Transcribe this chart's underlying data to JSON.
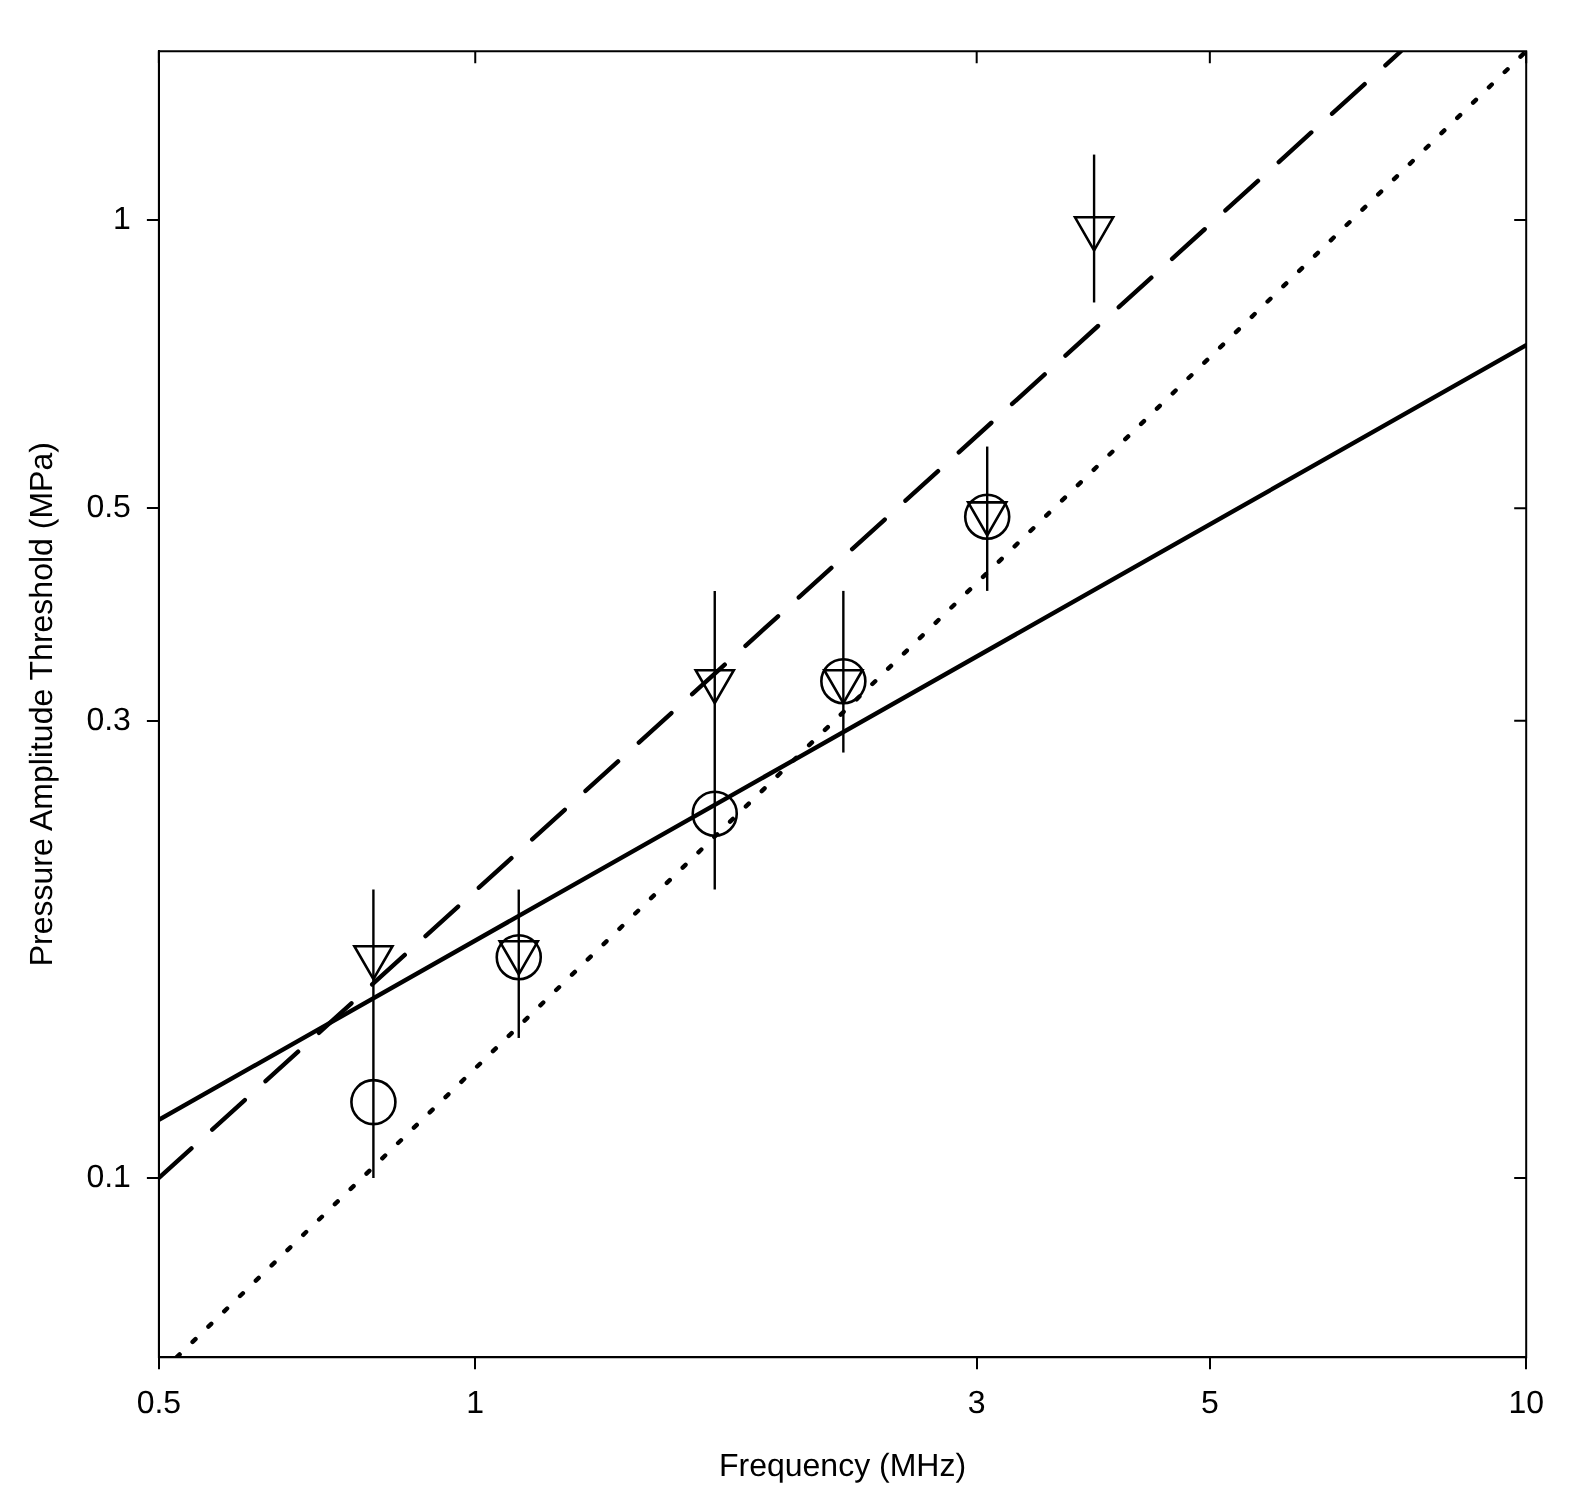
{
  "chart_data": {
    "type": "scatter",
    "xlabel": "Frequency (MHz)",
    "ylabel": "Pressure Amplitude Threshold (MPa)",
    "log": "xy",
    "grid": false,
    "legend": false,
    "xlim": [
      0.5,
      10
    ],
    "xticks": [
      0.5,
      1,
      3,
      5,
      10
    ],
    "ylim": [
      0.065,
      1.5
    ],
    "yticks": [
      0.1,
      0.3,
      0.5,
      1
    ],
    "series": [
      {
        "marker": "triangle",
        "color": "#000000",
        "x": [
          0.8,
          1.1,
          1.69,
          2.24,
          3.07,
          3.88
        ],
        "values": [
          0.17,
          0.172,
          0.33,
          0.33,
          0.494,
          0.98
        ],
        "errors": [
          [
            0.1,
            0.2
          ],
          [
            0.14,
            0.2
          ],
          [
            0.2,
            0.41
          ],
          [
            0.278,
            0.41
          ],
          [
            0.41,
            0.58
          ],
          [
            0.82,
            1.17
          ]
        ]
      },
      {
        "marker": "circle",
        "color": "#000000",
        "x": [
          0.8,
          1.1,
          1.69,
          2.24,
          3.07
        ],
        "values": [
          0.12,
          0.17,
          0.24,
          0.33,
          0.49
        ]
      },
      {
        "type": "line",
        "line_style": "solid",
        "marker": "none",
        "color": "#000000",
        "x": [
          0.5,
          10
        ],
        "values": [
          0.115,
          0.74
        ]
      },
      {
        "type": "line",
        "line_style": "dashed",
        "marker": "none",
        "color": "#000000",
        "x": [
          0.5,
          7.6
        ],
        "values": [
          0.1,
          1.5
        ]
      },
      {
        "type": "line",
        "line_style": "dotted",
        "marker": "none",
        "color": "#000000",
        "x": [
          0.52,
          10
        ],
        "values": [
          0.065,
          1.5
        ]
      }
    ]
  }
}
